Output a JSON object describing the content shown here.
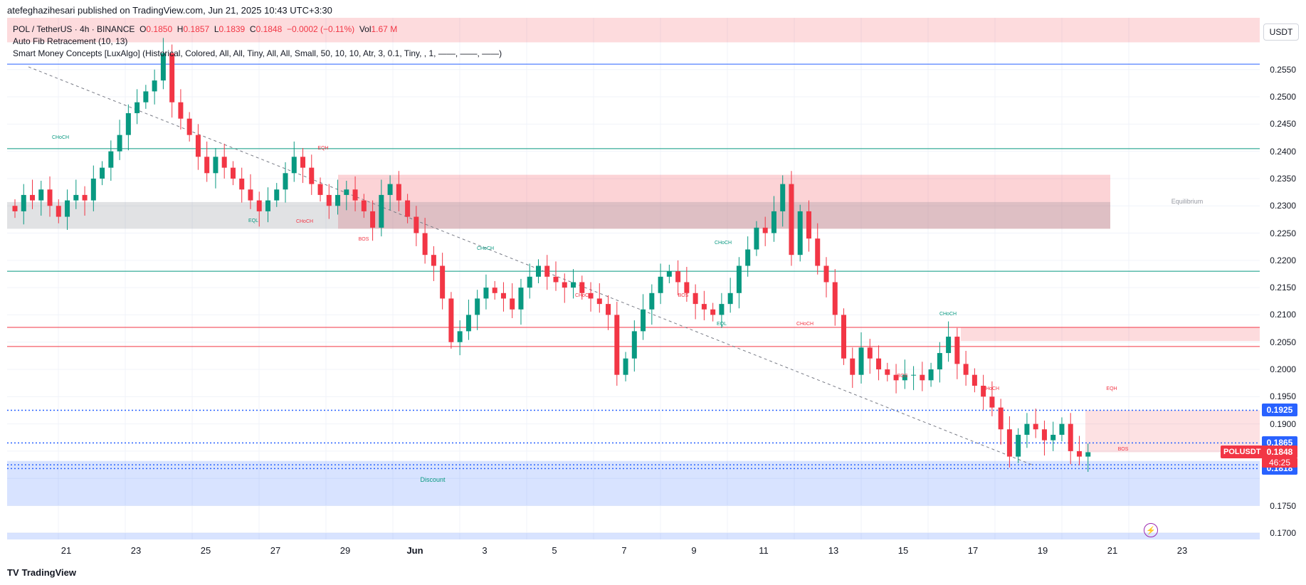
{
  "header": {
    "text": "atefeghazihesari published on TradingView.com, Jun 21, 2025 10:43 UTC+3:30"
  },
  "legend": {
    "symbol": "POL / TetherUS · 4h · BINANCE",
    "o_label": "O",
    "o_value": "0.1850",
    "h_label": "H",
    "h_value": "0.1857",
    "l_label": "L",
    "l_value": "0.1839",
    "c_label": "C",
    "c_value": "0.1848",
    "change": "−0.0002 (−0.11%)",
    "vol_label": "Vol",
    "vol_value": "1.67 M",
    "indicator1": "Auto Fib Retracement (10, 13)",
    "indicator2": "Smart Money Concepts [LuxAlgo] (Historical, Colored, All, All, Tiny, All, All, Small, 50, 10, 10, Atr, 3, 0.1, Tiny, , 1, ——, ——, ——)"
  },
  "currency": "USDT",
  "price_axis": [
    "0.2550",
    "0.2500",
    "0.2450",
    "0.2400",
    "0.2350",
    "0.2300",
    "0.2250",
    "0.2200",
    "0.2150",
    "0.2100",
    "0.2050",
    "0.2000",
    "0.1950",
    "0.1900",
    "0.1750",
    "0.1700"
  ],
  "price_tags": [
    {
      "value": "0.1925",
      "color": "#2962ff"
    },
    {
      "value": "0.1865",
      "color": "#2962ff"
    },
    {
      "value": "0.1825",
      "color": "#2962ff"
    },
    {
      "value": "0.1818",
      "color": "#2962ff"
    }
  ],
  "last_price": {
    "symbol": "POLUSDT",
    "value": "0.1848",
    "countdown": "46:25",
    "color": "#f23645"
  },
  "time_axis": [
    "21",
    "23",
    "25",
    "27",
    "29",
    "Jun",
    "3",
    "5",
    "7",
    "9",
    "11",
    "13",
    "15",
    "17",
    "19",
    "21",
    "23"
  ],
  "smc_labels": {
    "choch": "CHoCH",
    "bos": "BOS",
    "eqh": "EQH",
    "eql": "EQL",
    "equilibrium": "Equilibrium",
    "discount": "Discount"
  },
  "footer": {
    "brand": "TradingView"
  },
  "colors": {
    "up": "#089981",
    "down": "#f23645",
    "fib_blue": "#2962ff",
    "premium": "#f23645",
    "discount": "#2962ff"
  },
  "chart_data": {
    "type": "candlestick",
    "title": "POL / TetherUS · 4h · BINANCE",
    "ylim": [
      0.1688,
      0.2645
    ],
    "x_tick_labels": [
      "21",
      "23",
      "25",
      "27",
      "29",
      "Jun",
      "3",
      "5",
      "7",
      "9",
      "11",
      "13",
      "15",
      "17",
      "19",
      "21",
      "23"
    ],
    "candles_close_approx": [
      0.229,
      0.232,
      0.231,
      0.233,
      0.23,
      0.228,
      0.231,
      0.232,
      0.231,
      0.235,
      0.237,
      0.24,
      0.243,
      0.247,
      0.249,
      0.251,
      0.253,
      0.258,
      0.249,
      0.246,
      0.243,
      0.239,
      0.236,
      0.239,
      0.237,
      0.235,
      0.233,
      0.231,
      0.229,
      0.231,
      0.233,
      0.236,
      0.239,
      0.237,
      0.234,
      0.232,
      0.23,
      0.232,
      0.233,
      0.231,
      0.229,
      0.226,
      0.232,
      0.234,
      0.231,
      0.228,
      0.225,
      0.221,
      0.219,
      0.213,
      0.205,
      0.207,
      0.21,
      0.213,
      0.215,
      0.214,
      0.213,
      0.211,
      0.215,
      0.217,
      0.219,
      0.217,
      0.216,
      0.215,
      0.216,
      0.214,
      0.213,
      0.212,
      0.21,
      0.199,
      0.202,
      0.207,
      0.211,
      0.214,
      0.217,
      0.218,
      0.216,
      0.214,
      0.212,
      0.211,
      0.21,
      0.212,
      0.214,
      0.219,
      0.222,
      0.226,
      0.225,
      0.229,
      0.234,
      0.221,
      0.229,
      0.224,
      0.219,
      0.216,
      0.21,
      0.202,
      0.199,
      0.204,
      0.202,
      0.2,
      0.199,
      0.198,
      0.199,
      0.199,
      0.198,
      0.2,
      0.203,
      0.206,
      0.201,
      0.199,
      0.197,
      0.195,
      0.193,
      0.189,
      0.184,
      0.188,
      0.19,
      0.189,
      0.187,
      0.188,
      0.19,
      0.185,
      0.184,
      0.1848
    ],
    "horizontal_levels": [
      0.256,
      0.2405,
      0.218,
      0.2077,
      0.2042,
      0.1925,
      0.1865,
      0.1825,
      0.1818
    ],
    "zones": [
      {
        "name": "premium",
        "top": 0.2645,
        "bottom": 0.26
      },
      {
        "name": "supply",
        "top": 0.2357,
        "bottom": 0.2258
      },
      {
        "name": "equilibrium",
        "top": 0.2307,
        "bottom": 0.2258
      },
      {
        "name": "supply-2",
        "top": 0.2077,
        "bottom": 0.2052
      },
      {
        "name": "supply-3",
        "top": 0.1925,
        "bottom": 0.1848
      },
      {
        "name": "discount",
        "top": 0.1832,
        "bottom": 0.175
      },
      {
        "name": "discount-low",
        "top": 0.17,
        "bottom": 0.1688
      }
    ]
  }
}
